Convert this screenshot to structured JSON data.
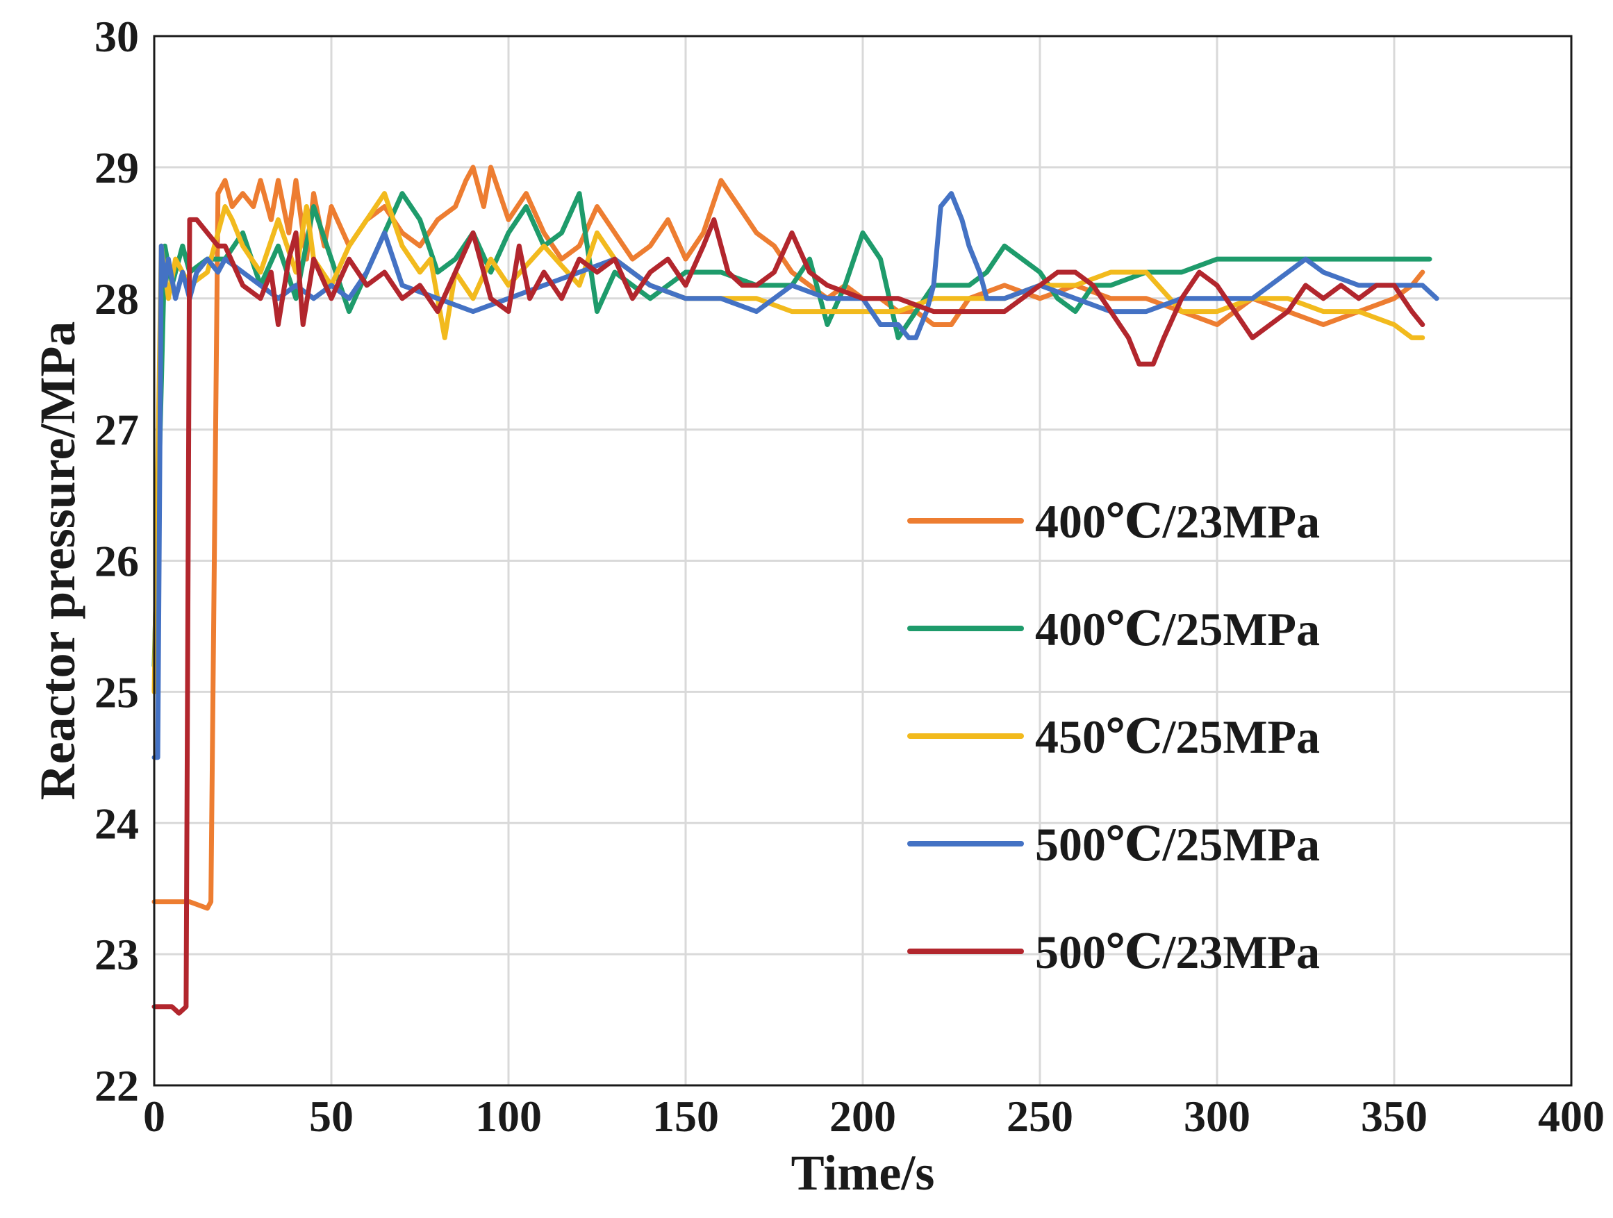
{
  "chart_data": {
    "type": "line",
    "title": "",
    "xlabel": "Time/s",
    "ylabel": "Reactor pressure/MPa",
    "xlim": [
      0,
      400
    ],
    "ylim": [
      22,
      30
    ],
    "xticks": [
      0,
      50,
      100,
      150,
      200,
      250,
      300,
      350,
      400
    ],
    "yticks": [
      22,
      23,
      24,
      25,
      26,
      27,
      28,
      29,
      30
    ],
    "grid": true,
    "legend_position": "center-right",
    "series": [
      {
        "name": "400℃/23MPa",
        "color": "#ED7D31",
        "x": [
          0,
          5,
          10,
          15,
          16,
          18,
          20,
          22,
          25,
          28,
          30,
          33,
          35,
          38,
          40,
          43,
          45,
          48,
          50,
          55,
          60,
          65,
          70,
          75,
          80,
          85,
          88,
          90,
          93,
          95,
          100,
          105,
          110,
          115,
          120,
          125,
          130,
          135,
          140,
          145,
          150,
          155,
          160,
          165,
          170,
          175,
          180,
          185,
          190,
          195,
          200,
          205,
          210,
          215,
          220,
          225,
          230,
          240,
          250,
          260,
          270,
          280,
          290,
          300,
          310,
          320,
          330,
          340,
          350,
          355,
          358
        ],
        "values": [
          23.4,
          23.4,
          23.4,
          23.35,
          23.4,
          28.8,
          28.9,
          28.7,
          28.8,
          28.7,
          28.9,
          28.6,
          28.9,
          28.5,
          28.9,
          28.3,
          28.8,
          28.4,
          28.7,
          28.4,
          28.6,
          28.7,
          28.5,
          28.4,
          28.6,
          28.7,
          28.9,
          29.0,
          28.7,
          29.0,
          28.6,
          28.8,
          28.5,
          28.3,
          28.4,
          28.7,
          28.5,
          28.3,
          28.4,
          28.6,
          28.3,
          28.5,
          28.9,
          28.7,
          28.5,
          28.4,
          28.2,
          28.1,
          28.0,
          28.1,
          28.0,
          28.0,
          27.9,
          27.9,
          27.8,
          27.8,
          28.0,
          28.1,
          28.0,
          28.1,
          28.0,
          28.0,
          27.9,
          27.8,
          28.0,
          27.9,
          27.8,
          27.9,
          28.0,
          28.1,
          28.2
        ]
      },
      {
        "name": "400℃/25MPa",
        "color": "#1E9B6B",
        "x": [
          0,
          3,
          5,
          8,
          10,
          15,
          20,
          25,
          30,
          35,
          40,
          45,
          50,
          55,
          60,
          65,
          70,
          75,
          80,
          85,
          90,
          95,
          100,
          105,
          110,
          115,
          120,
          125,
          130,
          140,
          150,
          160,
          170,
          180,
          185,
          190,
          195,
          200,
          205,
          210,
          215,
          220,
          225,
          230,
          235,
          240,
          245,
          250,
          255,
          260,
          265,
          270,
          280,
          290,
          300,
          320,
          340,
          360
        ],
        "values": [
          25.2,
          28.4,
          28.1,
          28.4,
          28.2,
          28.3,
          28.3,
          28.5,
          28.1,
          28.4,
          28.0,
          28.7,
          28.3,
          27.9,
          28.2,
          28.5,
          28.8,
          28.6,
          28.2,
          28.3,
          28.5,
          28.2,
          28.5,
          28.7,
          28.4,
          28.5,
          28.8,
          27.9,
          28.2,
          28.0,
          28.2,
          28.2,
          28.1,
          28.1,
          28.3,
          27.8,
          28.1,
          28.5,
          28.3,
          27.7,
          27.9,
          28.1,
          28.1,
          28.1,
          28.2,
          28.4,
          28.3,
          28.2,
          28.0,
          27.9,
          28.1,
          28.1,
          28.2,
          28.2,
          28.3,
          28.3,
          28.3,
          28.3
        ]
      },
      {
        "name": "450℃/25MPa",
        "color": "#F2BA1D",
        "x": [
          0,
          2,
          4,
          6,
          10,
          15,
          20,
          22,
          25,
          30,
          35,
          40,
          43,
          45,
          50,
          55,
          60,
          65,
          70,
          75,
          78,
          82,
          85,
          90,
          95,
          100,
          110,
          120,
          125,
          130,
          140,
          150,
          160,
          170,
          180,
          190,
          200,
          210,
          220,
          230,
          240,
          250,
          260,
          270,
          280,
          290,
          300,
          310,
          320,
          330,
          340,
          350,
          355,
          358
        ],
        "values": [
          25.0,
          28.4,
          28.0,
          28.3,
          28.1,
          28.2,
          28.7,
          28.6,
          28.4,
          28.2,
          28.6,
          28.2,
          28.7,
          28.3,
          28.1,
          28.4,
          28.6,
          28.8,
          28.4,
          28.2,
          28.3,
          27.7,
          28.2,
          28.0,
          28.3,
          28.1,
          28.4,
          28.1,
          28.5,
          28.3,
          28.1,
          28.0,
          28.0,
          28.0,
          27.9,
          27.9,
          27.9,
          27.9,
          28.0,
          28.0,
          28.0,
          28.1,
          28.1,
          28.2,
          28.2,
          27.9,
          27.9,
          28.0,
          28.0,
          27.9,
          27.9,
          27.8,
          27.7,
          27.7
        ]
      },
      {
        "name": "500℃/25MPa",
        "color": "#4472C4",
        "x": [
          0,
          1,
          2,
          3,
          4,
          6,
          8,
          10,
          12,
          15,
          18,
          20,
          25,
          30,
          35,
          40,
          45,
          50,
          55,
          60,
          65,
          70,
          80,
          90,
          100,
          110,
          120,
          130,
          140,
          150,
          160,
          170,
          180,
          190,
          200,
          205,
          210,
          213,
          215,
          218,
          220,
          222,
          225,
          228,
          230,
          233,
          235,
          240,
          250,
          260,
          270,
          280,
          290,
          300,
          310,
          320,
          325,
          330,
          340,
          350,
          358,
          362
        ],
        "values": [
          24.5,
          24.5,
          28.4,
          28.1,
          28.3,
          28.0,
          28.2,
          28.0,
          28.2,
          28.3,
          28.2,
          28.3,
          28.2,
          28.1,
          28.0,
          28.1,
          28.0,
          28.1,
          28.0,
          28.2,
          28.5,
          28.1,
          28.0,
          27.9,
          28.0,
          28.1,
          28.2,
          28.3,
          28.1,
          28.0,
          28.0,
          27.9,
          28.1,
          28.0,
          28.0,
          27.8,
          27.8,
          27.7,
          27.7,
          27.9,
          28.1,
          28.7,
          28.8,
          28.6,
          28.4,
          28.2,
          28.0,
          28.0,
          28.1,
          28.0,
          27.9,
          27.9,
          28.0,
          28.0,
          28.0,
          28.2,
          28.3,
          28.2,
          28.1,
          28.1,
          28.1,
          28.0
        ]
      },
      {
        "name": "500℃/23MPa",
        "color": "#B2262D",
        "x": [
          0,
          3,
          5,
          7,
          9,
          10,
          11,
          12,
          15,
          18,
          20,
          25,
          30,
          33,
          35,
          38,
          40,
          42,
          45,
          50,
          55,
          60,
          65,
          70,
          75,
          80,
          85,
          90,
          95,
          100,
          103,
          106,
          110,
          115,
          120,
          125,
          130,
          135,
          140,
          145,
          150,
          155,
          158,
          162,
          166,
          170,
          175,
          180,
          185,
          190,
          200,
          210,
          220,
          230,
          240,
          250,
          255,
          260,
          265,
          270,
          275,
          278,
          282,
          285,
          290,
          295,
          300,
          305,
          310,
          315,
          320,
          325,
          330,
          335,
          340,
          345,
          350,
          355,
          358
        ],
        "values": [
          22.6,
          22.6,
          22.6,
          22.55,
          22.6,
          28.6,
          28.6,
          28.6,
          28.5,
          28.4,
          28.4,
          28.1,
          28.0,
          28.2,
          27.8,
          28.3,
          28.5,
          27.8,
          28.3,
          28.0,
          28.3,
          28.1,
          28.2,
          28.0,
          28.1,
          27.9,
          28.2,
          28.5,
          28.0,
          27.9,
          28.4,
          28.0,
          28.2,
          28.0,
          28.3,
          28.2,
          28.3,
          28.0,
          28.2,
          28.3,
          28.1,
          28.4,
          28.6,
          28.2,
          28.1,
          28.1,
          28.2,
          28.5,
          28.2,
          28.1,
          28.0,
          28.0,
          27.9,
          27.9,
          27.9,
          28.1,
          28.2,
          28.2,
          28.1,
          27.9,
          27.7,
          27.5,
          27.5,
          27.7,
          28.0,
          28.2,
          28.1,
          27.9,
          27.7,
          27.8,
          27.9,
          28.1,
          28.0,
          28.1,
          28.0,
          28.1,
          28.1,
          27.9,
          27.8
        ]
      }
    ]
  }
}
